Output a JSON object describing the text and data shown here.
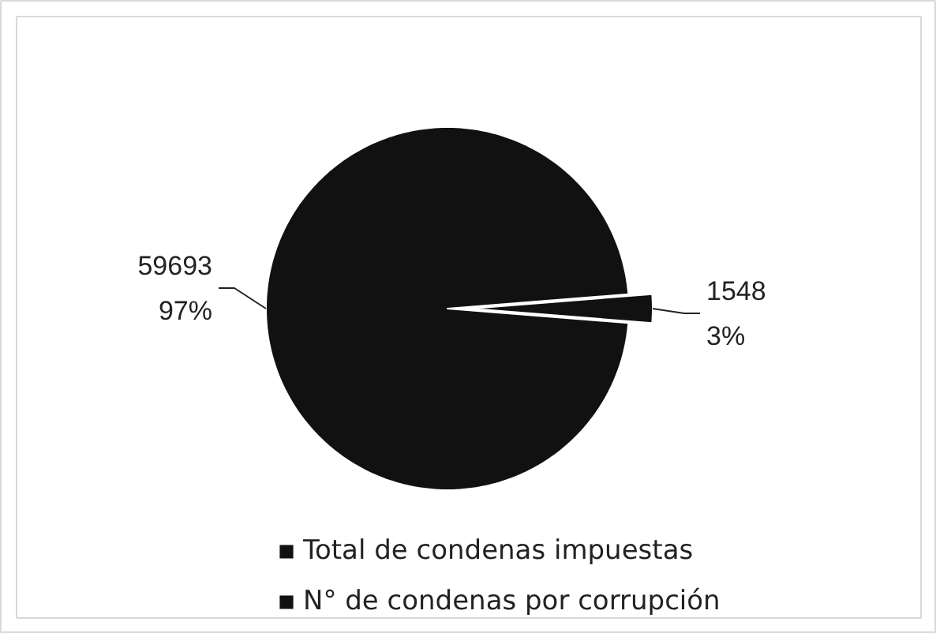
{
  "chart_data": {
    "type": "pie",
    "categories": [
      "Total de condenas impuestas",
      "N° de condenas por corrupción"
    ],
    "values": [
      59693,
      1548
    ],
    "colors": [
      "#111111",
      "#111111"
    ],
    "value_labels": [
      "59693\n97%",
      "1548\n3%"
    ],
    "legend": "bottom"
  }
}
